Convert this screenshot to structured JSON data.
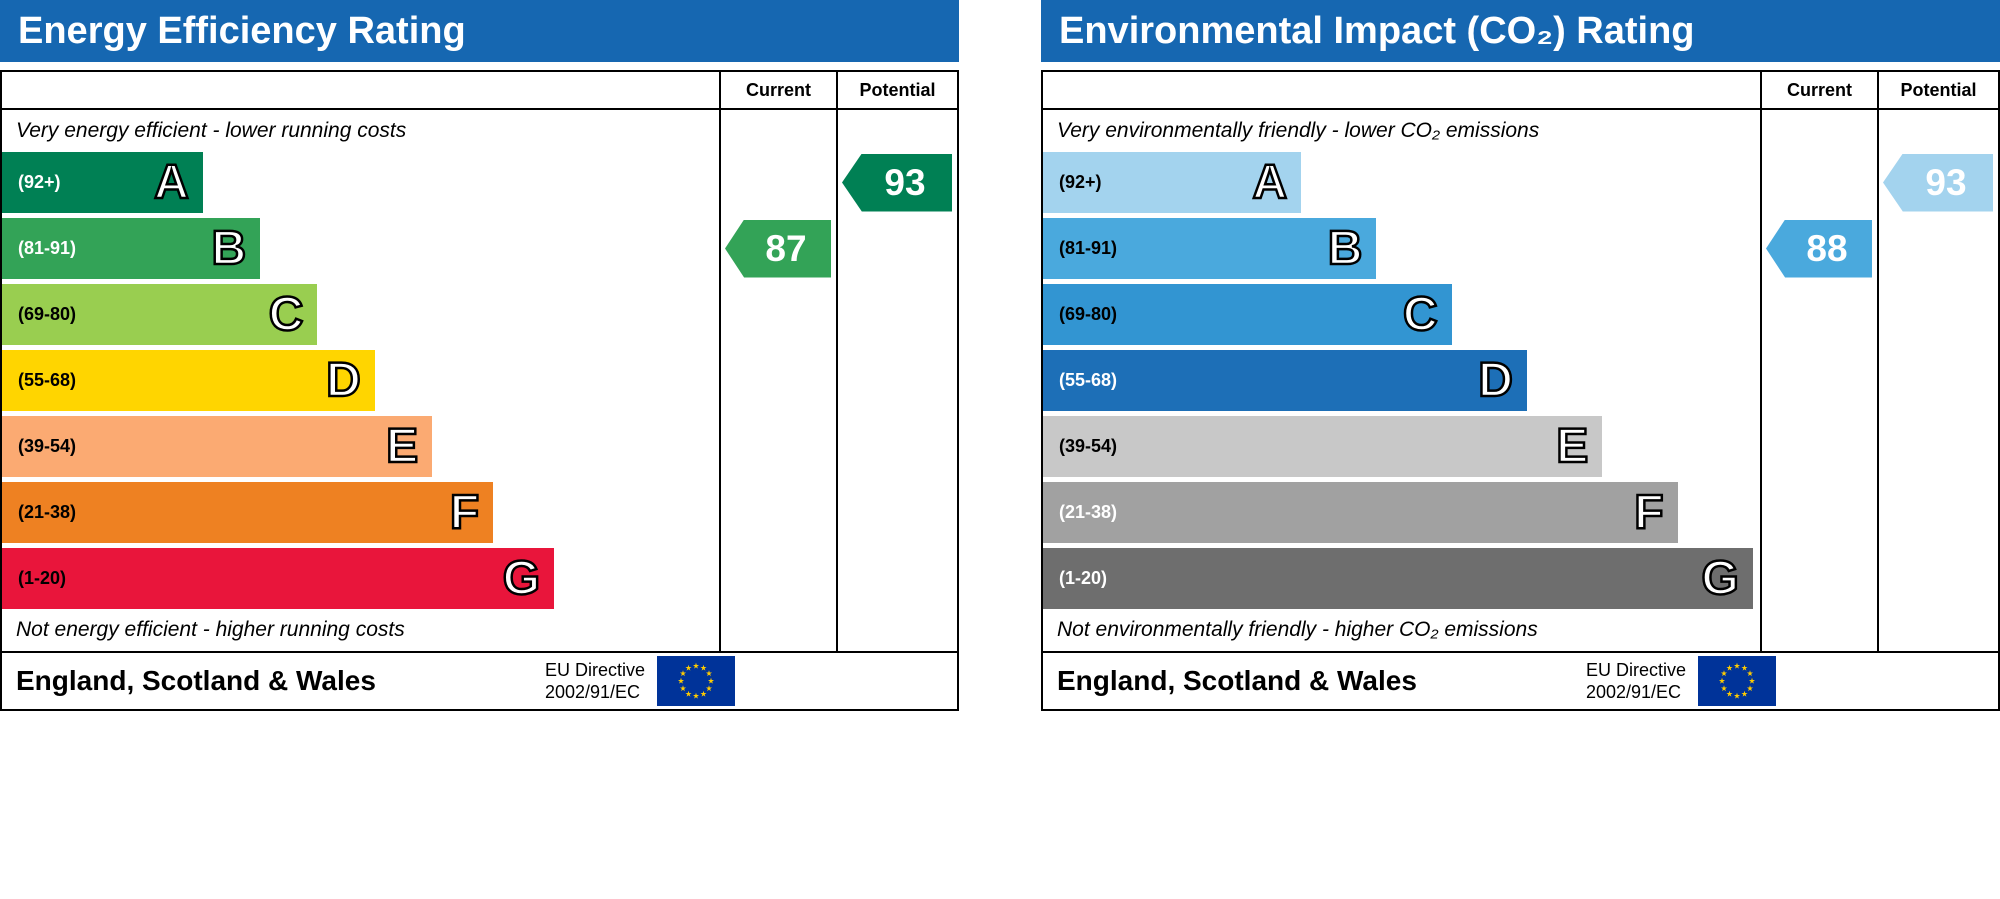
{
  "charts": [
    {
      "title": "Energy Efficiency Rating",
      "columns": {
        "current": "Current",
        "potential": "Potential"
      },
      "top_caption": "Very energy efficient - lower running costs",
      "bottom_caption": "Not energy efficient - higher running costs",
      "bands": [
        {
          "letter": "A",
          "label": "(92+)",
          "color": "#008054",
          "label_color": "#ffffff",
          "width_pct": 28
        },
        {
          "letter": "B",
          "label": "(81-91)",
          "color": "#33a357",
          "label_color": "#ffffff",
          "width_pct": 36
        },
        {
          "letter": "C",
          "label": "(69-80)",
          "color": "#99ce50",
          "label_color": "#000000",
          "width_pct": 44
        },
        {
          "letter": "D",
          "label": "(55-68)",
          "color": "#ffd500",
          "label_color": "#000000",
          "width_pct": 52
        },
        {
          "letter": "E",
          "label": "(39-54)",
          "color": "#fbaa72",
          "label_color": "#000000",
          "width_pct": 60
        },
        {
          "letter": "F",
          "label": "(21-38)",
          "color": "#ee8122",
          "label_color": "#000000",
          "width_pct": 68.5
        },
        {
          "letter": "G",
          "label": "(1-20)",
          "color": "#e9153b",
          "label_color": "#000000",
          "width_pct": 77
        }
      ],
      "current": {
        "value": 87,
        "band": "B",
        "band_index": 1,
        "color": "#33a357",
        "text_color": "#ffffff"
      },
      "potential": {
        "value": 93,
        "band": "A",
        "band_index": 0,
        "color": "#008054",
        "text_color": "#ffffff"
      },
      "footer": {
        "region": "England, Scotland & Wales",
        "directive_line1": "EU Directive",
        "directive_line2": "2002/91/EC"
      }
    },
    {
      "title": "Environmental Impact (CO₂) Rating",
      "columns": {
        "current": "Current",
        "potential": "Potential"
      },
      "top_caption": "Very environmentally friendly - lower CO₂ emissions",
      "bottom_caption": "Not environmentally friendly - higher CO₂ emissions",
      "bands": [
        {
          "letter": "A",
          "label": "(92+)",
          "color": "#a3d3ee",
          "label_color": "#000000",
          "width_pct": 36
        },
        {
          "letter": "B",
          "label": "(81-91)",
          "color": "#4aa9dd",
          "label_color": "#000000",
          "width_pct": 46.5
        },
        {
          "letter": "C",
          "label": "(69-80)",
          "color": "#3295d2",
          "label_color": "#000000",
          "width_pct": 57
        },
        {
          "letter": "D",
          "label": "(55-68)",
          "color": "#1d6fb7",
          "label_color": "#ffffff",
          "width_pct": 67.5
        },
        {
          "letter": "E",
          "label": "(39-54)",
          "color": "#c8c8c8",
          "label_color": "#000000",
          "width_pct": 78
        },
        {
          "letter": "F",
          "label": "(21-38)",
          "color": "#a1a1a1",
          "label_color": "#ffffff",
          "width_pct": 88.5
        },
        {
          "letter": "G",
          "label": "(1-20)",
          "color": "#6e6e6e",
          "label_color": "#ffffff",
          "width_pct": 99
        }
      ],
      "current": {
        "value": 88,
        "band": "B",
        "band_index": 1,
        "color": "#4aa9dd",
        "text_color": "#ffffff"
      },
      "potential": {
        "value": 93,
        "band": "A",
        "band_index": 0,
        "color": "#a3d3ee",
        "text_color": "#ffffff"
      },
      "footer": {
        "region": "England, Scotland & Wales",
        "directive_line1": "EU Directive",
        "directive_line2": "2002/91/EC"
      }
    }
  ],
  "chart_data": [
    {
      "type": "bar",
      "title": "Energy Efficiency Rating",
      "categories": [
        "A",
        "B",
        "C",
        "D",
        "E",
        "F",
        "G"
      ],
      "band_ranges": [
        "92+",
        "81-91",
        "69-80",
        "55-68",
        "39-54",
        "21-38",
        "1-20"
      ],
      "series": [
        {
          "name": "Current",
          "value": 87,
          "band": "B"
        },
        {
          "name": "Potential",
          "value": 93,
          "band": "A"
        }
      ],
      "scale_min": 1,
      "scale_max": 100,
      "top_note": "Very energy efficient - lower running costs",
      "bottom_note": "Not energy efficient - higher running costs",
      "region": "England, Scotland & Wales",
      "directive": "EU Directive 2002/91/EC",
      "legend_position": "none",
      "grid": false
    },
    {
      "type": "bar",
      "title": "Environmental Impact (CO₂) Rating",
      "categories": [
        "A",
        "B",
        "C",
        "D",
        "E",
        "F",
        "G"
      ],
      "band_ranges": [
        "92+",
        "81-91",
        "69-80",
        "55-68",
        "39-54",
        "21-38",
        "1-20"
      ],
      "series": [
        {
          "name": "Current",
          "value": 88,
          "band": "B"
        },
        {
          "name": "Potential",
          "value": 93,
          "band": "A"
        }
      ],
      "scale_min": 1,
      "scale_max": 100,
      "top_note": "Very environmentally friendly - lower CO₂ emissions",
      "bottom_note": "Not environmentally friendly - higher CO₂ emissions",
      "region": "England, Scotland & Wales",
      "directive": "EU Directive 2002/91/EC",
      "legend_position": "none",
      "grid": false
    }
  ]
}
